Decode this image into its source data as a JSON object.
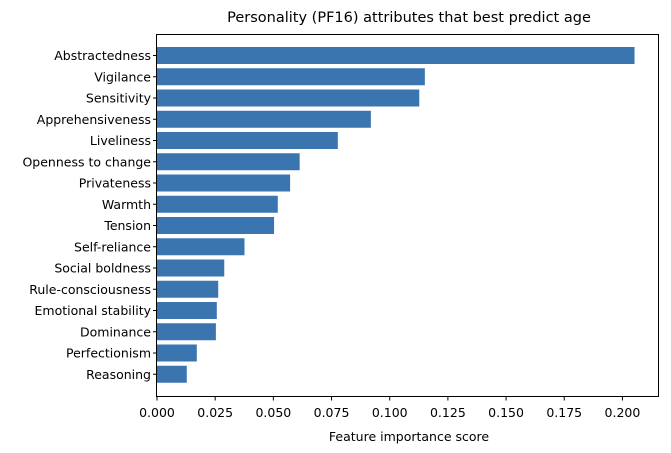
{
  "chart_data": {
    "type": "bar",
    "orientation": "horizontal",
    "title": "Personality (PF16) attributes that best predict age",
    "xlabel": "Feature importance score",
    "ylabel": "",
    "xlim": [
      0,
      0.2155
    ],
    "xticks": [
      "0.000",
      "0.025",
      "0.050",
      "0.075",
      "0.100",
      "0.125",
      "0.150",
      "0.175",
      "0.200"
    ],
    "bar_color": "#3A75B0",
    "grid": false,
    "categories": [
      "Abstractedness",
      "Vigilance",
      "Sensitivity",
      "Apprehensiveness",
      "Liveliness",
      "Openness to change",
      "Privateness",
      "Warmth",
      "Tension",
      "Self-reliance",
      "Social boldness",
      "Rule-consciousness",
      "Emotional stability",
      "Dominance",
      "Perfectionism",
      "Reasoning"
    ],
    "values": [
      0.2052,
      0.1151,
      0.1127,
      0.0919,
      0.0777,
      0.0613,
      0.0572,
      0.0519,
      0.0503,
      0.0376,
      0.0289,
      0.0263,
      0.0257,
      0.0253,
      0.0171,
      0.0128
    ]
  }
}
